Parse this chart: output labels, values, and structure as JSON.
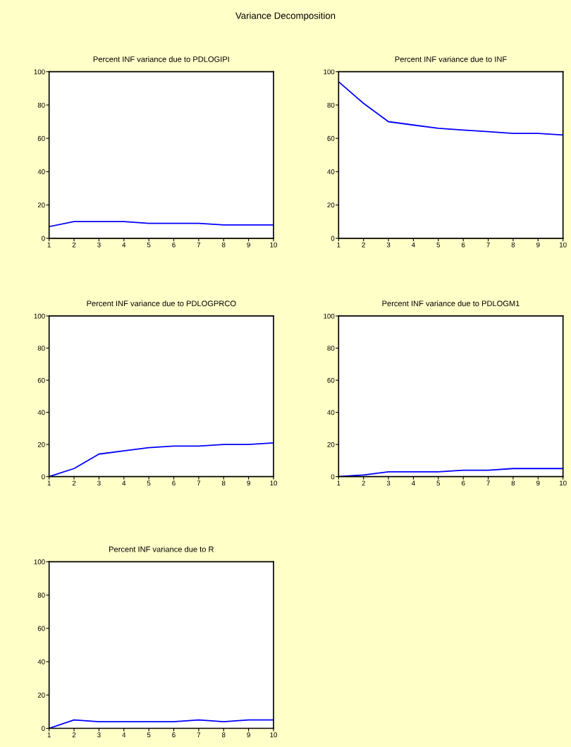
{
  "chart_data": [
    {
      "type": "line",
      "title": "Percent INF variance due to PDLOGIPI",
      "annotations": [
        "Variance Decomposition"
      ],
      "x": [
        1,
        2,
        3,
        4,
        5,
        6,
        7,
        8,
        9,
        10
      ],
      "series": [
        {
          "color": "#0000ff",
          "values": [
            7,
            10,
            10,
            10,
            9,
            9,
            9,
            8,
            8,
            8
          ]
        }
      ],
      "xlim": [
        1,
        10
      ],
      "xticks": [
        1,
        2,
        3,
        4,
        5,
        6,
        7,
        8,
        9,
        10
      ],
      "ylim": [
        0,
        100
      ],
      "yticks": [
        0,
        20,
        40,
        60,
        80,
        100
      ]
    },
    {
      "type": "line",
      "title": "Percent INF variance due to INF",
      "x": [
        1,
        2,
        3,
        4,
        5,
        6,
        7,
        8,
        9,
        10
      ],
      "series": [
        {
          "color": "#0000ff",
          "values": [
            94,
            81,
            70,
            68,
            66,
            65,
            64,
            63,
            63,
            62
          ]
        }
      ],
      "xlim": [
        1,
        10
      ],
      "xticks": [
        1,
        2,
        3,
        4,
        5,
        6,
        7,
        8,
        9,
        10
      ],
      "ylim": [
        0,
        100
      ],
      "yticks": [
        0,
        20,
        40,
        60,
        80,
        100
      ]
    },
    {
      "type": "line",
      "title": "Percent INF variance due to PDLOGPRCO",
      "x": [
        1,
        2,
        3,
        4,
        5,
        6,
        7,
        8,
        9,
        10
      ],
      "series": [
        {
          "color": "#0000ff",
          "values": [
            0,
            5,
            14,
            16,
            18,
            19,
            19,
            20,
            20,
            21
          ]
        }
      ],
      "xlim": [
        1,
        10
      ],
      "xticks": [
        1,
        2,
        3,
        4,
        5,
        6,
        7,
        8,
        9,
        10
      ],
      "ylim": [
        0,
        100
      ],
      "yticks": [
        0,
        20,
        40,
        60,
        80,
        100
      ]
    },
    {
      "type": "line",
      "title": "Percent INF variance due to PDLOGM1",
      "x": [
        1,
        2,
        3,
        4,
        5,
        6,
        7,
        8,
        9,
        10
      ],
      "series": [
        {
          "color": "#0000ff",
          "values": [
            0,
            1,
            3,
            3,
            3,
            4,
            4,
            5,
            5,
            5
          ]
        }
      ],
      "xlim": [
        1,
        10
      ],
      "xticks": [
        1,
        2,
        3,
        4,
        5,
        6,
        7,
        8,
        9,
        10
      ],
      "ylim": [
        0,
        100
      ],
      "yticks": [
        0,
        20,
        40,
        60,
        80,
        100
      ]
    },
    {
      "type": "line",
      "title": "Percent INF variance due to R",
      "x": [
        1,
        2,
        3,
        4,
        5,
        6,
        7,
        8,
        9,
        10
      ],
      "series": [
        {
          "color": "#0000ff",
          "values": [
            0,
            5,
            4,
            4,
            4,
            4,
            5,
            4,
            5,
            5
          ]
        }
      ],
      "xlim": [
        1,
        10
      ],
      "xticks": [
        1,
        2,
        3,
        4,
        5,
        6,
        7,
        8,
        9,
        10
      ],
      "ylim": [
        0,
        100
      ],
      "yticks": [
        0,
        20,
        40,
        60,
        80,
        100
      ]
    }
  ]
}
